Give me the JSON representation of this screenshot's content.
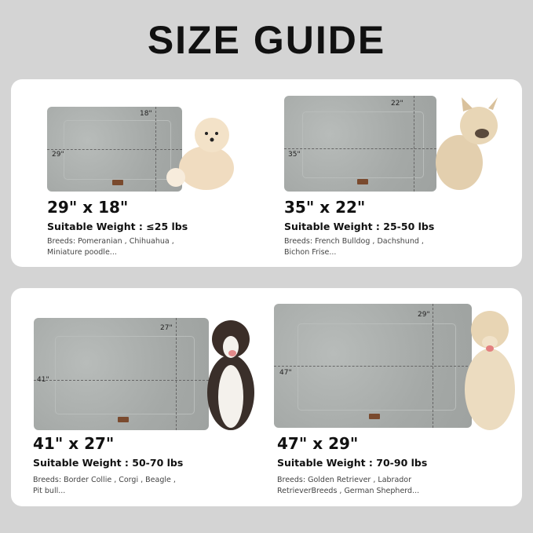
{
  "title": "SIZE GUIDE",
  "items": [
    {
      "size": "29\" x 18\"",
      "weight": "Suitable Weight : ≤25 lbs",
      "breeds_line1": "Breeds: Pomeranian , Chihuahua ,",
      "breeds_line2": "Miniature poodle...",
      "width_label": "29\"",
      "height_label": "18\""
    },
    {
      "size": "35\" x 22\"",
      "weight": "Suitable Weight : 25-50 lbs",
      "breeds_line1": "Breeds: French Bulldog , Dachshund ,",
      "breeds_line2": "Bichon Frise...",
      "width_label": "35\"",
      "height_label": "22\""
    },
    {
      "size": "41\" x 27\"",
      "weight": "Suitable Weight : 50-70 lbs",
      "breeds_line1": "Breeds: Border Collie , Corgi , Beagle ,",
      "breeds_line2": "Pit bull...",
      "width_label": "41\"",
      "height_label": "27\""
    },
    {
      "size": "47\" x 29\"",
      "weight": "Suitable Weight : 70-90 lbs",
      "breeds_line1": "Breeds: Golden Retriever , Labrador",
      "breeds_line2": "RetrieverBreeds , German Shepherd...",
      "width_label": "47\"",
      "height_label": "29\""
    }
  ],
  "colors": {
    "background": "#d4d4d4",
    "card": "#ffffff",
    "mat": "#a9adab"
  }
}
